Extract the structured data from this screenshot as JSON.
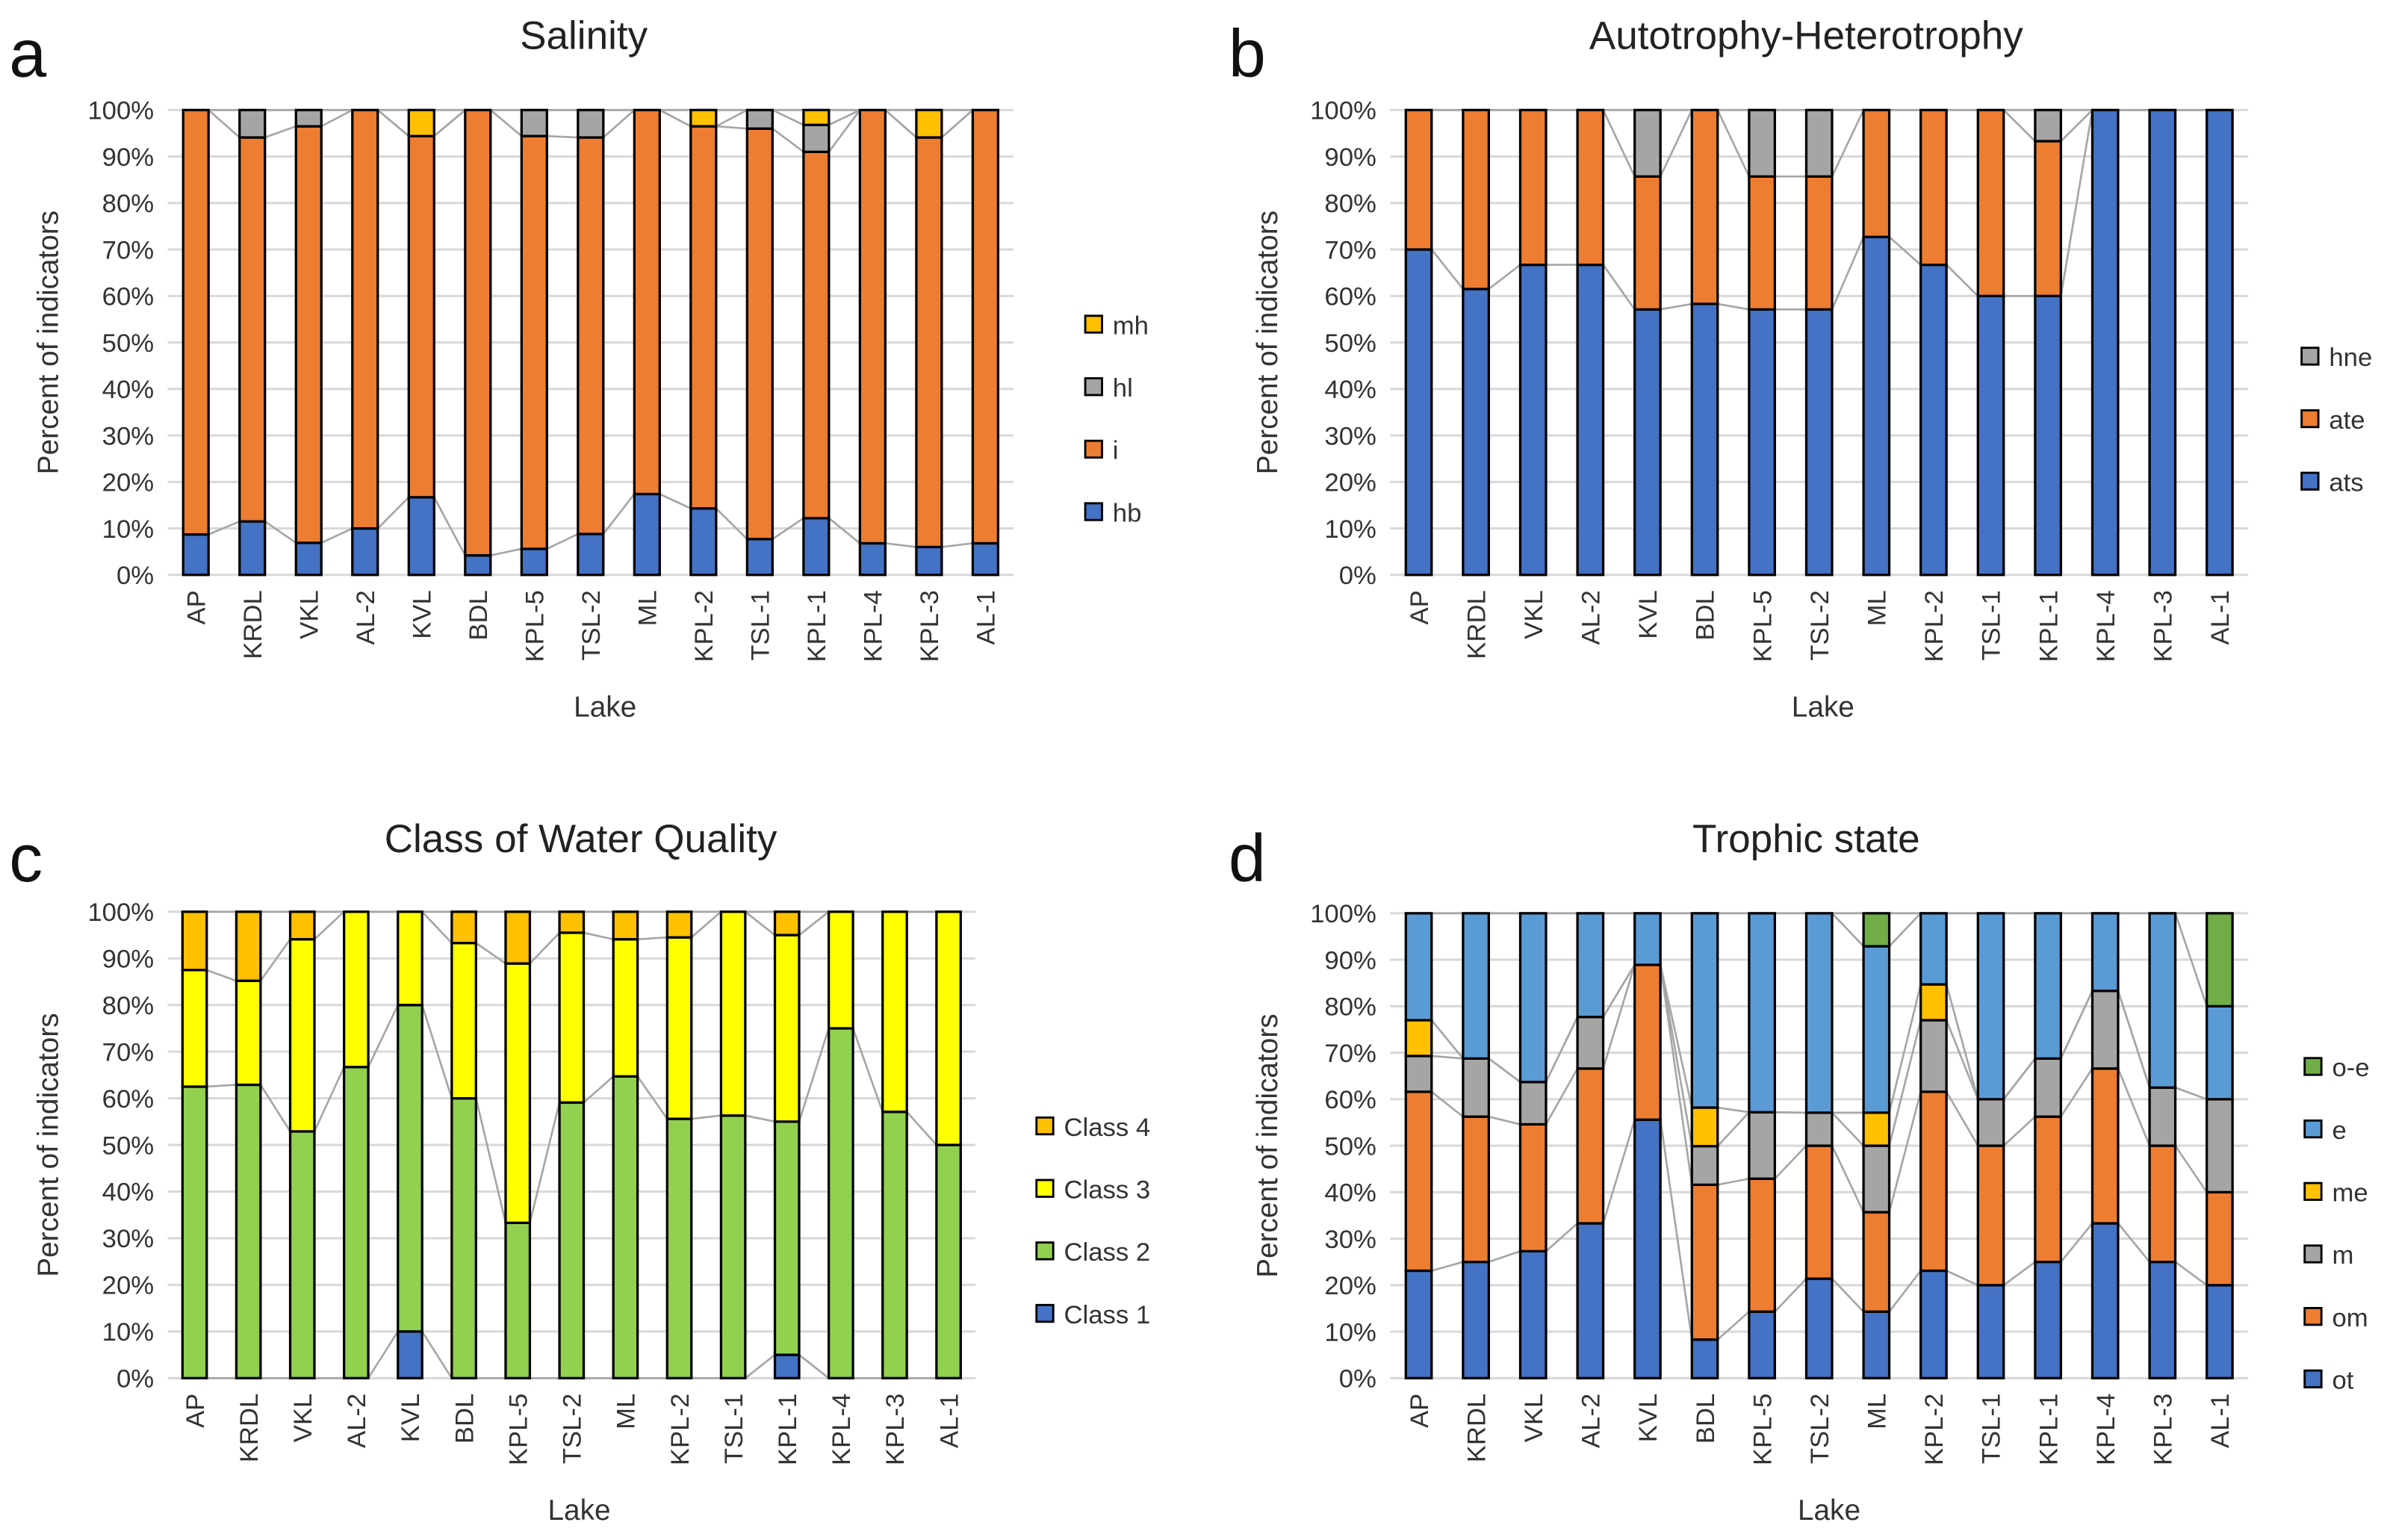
{
  "chart_data": [
    {
      "panel_letter": "a",
      "type": "bar",
      "stacked": "percent",
      "title": "Salinity",
      "xlabel": "Lake",
      "ylabel": "Percent of indicators",
      "ylim": [
        0,
        100
      ],
      "yticks": [
        "0%",
        "10%",
        "20%",
        "30%",
        "40%",
        "50%",
        "60%",
        "70%",
        "80%",
        "90%",
        "100%"
      ],
      "grid": true,
      "legend_position": "right",
      "series_lines": true,
      "categories": [
        "AP",
        "KRDL",
        "VKL",
        "AL-2",
        "KVL",
        "BDL",
        "KPL-5",
        "TSL-2",
        "ML",
        "KPL-2",
        "TSL-1",
        "KPL-1",
        "KPL-4",
        "KPL-3",
        "AL-1"
      ],
      "series": [
        {
          "name": "hb",
          "color": "#4472C4",
          "values": [
            8.7,
            11.5,
            6.9,
            10.0,
            16.7,
            4.2,
            5.6,
            8.8,
            17.4,
            14.3,
            7.7,
            12.2,
            6.8,
            6.0,
            6.8
          ]
        },
        {
          "name": "i",
          "color": "#ED7D31",
          "values": [
            91.3,
            82.6,
            89.6,
            90.0,
            77.7,
            95.8,
            88.8,
            85.3,
            82.6,
            82.2,
            88.3,
            78.8,
            93.2,
            88.1,
            93.2
          ]
        },
        {
          "name": "hl",
          "color": "#A5A5A5",
          "values": [
            0,
            5.9,
            3.5,
            0,
            0,
            0,
            5.6,
            5.9,
            0,
            0,
            4.0,
            5.8,
            0,
            0,
            0
          ]
        },
        {
          "name": "mh",
          "color": "#FFC000",
          "values": [
            0,
            0,
            0,
            0,
            5.6,
            0,
            0,
            0,
            0,
            3.5,
            0,
            3.2,
            0,
            5.9,
            0
          ]
        }
      ]
    },
    {
      "panel_letter": "b",
      "type": "bar",
      "stacked": "percent",
      "title": "Autotrophy-Heterotrophy",
      "xlabel": "Lake",
      "ylabel": "Percent of indicators",
      "ylim": [
        0,
        100
      ],
      "yticks": [
        "0%",
        "10%",
        "20%",
        "30%",
        "40%",
        "50%",
        "60%",
        "70%",
        "80%",
        "90%",
        "100%"
      ],
      "grid": true,
      "legend_position": "right",
      "series_lines": true,
      "categories": [
        "AP",
        "KRDL",
        "VKL",
        "AL-2",
        "KVL",
        "BDL",
        "KPL-5",
        "TSL-2",
        "ML",
        "KPL-2",
        "TSL-1",
        "KPL-1",
        "KPL-4",
        "KPL-3",
        "AL-1"
      ],
      "series": [
        {
          "name": "ats",
          "color": "#4472C4",
          "values": [
            70.0,
            61.5,
            66.7,
            66.7,
            57.1,
            58.3,
            57.1,
            57.1,
            72.7,
            66.7,
            60.0,
            60.0,
            100,
            100,
            100
          ]
        },
        {
          "name": "ate",
          "color": "#ED7D31",
          "values": [
            30.0,
            38.5,
            33.3,
            33.3,
            28.6,
            41.7,
            28.6,
            28.6,
            27.3,
            33.3,
            40.0,
            33.3,
            0,
            0,
            0
          ]
        },
        {
          "name": "hne",
          "color": "#A5A5A5",
          "values": [
            0,
            0,
            0,
            0,
            14.3,
            0,
            14.3,
            14.3,
            0,
            0,
            0,
            6.7,
            0,
            0,
            0
          ]
        }
      ]
    },
    {
      "panel_letter": "c",
      "type": "bar",
      "stacked": "percent",
      "title": "Class of Water Quality",
      "xlabel": "Lake",
      "ylabel": "Percent of indicators",
      "ylim": [
        0,
        100
      ],
      "yticks": [
        "0%",
        "10%",
        "20%",
        "30%",
        "40%",
        "50%",
        "60%",
        "70%",
        "80%",
        "90%",
        "100%"
      ],
      "grid": true,
      "legend_position": "right",
      "series_lines": true,
      "categories": [
        "AP",
        "KRDL",
        "VKL",
        "AL-2",
        "KVL",
        "BDL",
        "KPL-5",
        "TSL-2",
        "ML",
        "KPL-2",
        "TSL-1",
        "KPL-1",
        "KPL-4",
        "KPL-3",
        "AL-1"
      ],
      "series": [
        {
          "name": "Class 1",
          "color": "#4472C4",
          "values": [
            0,
            0,
            0,
            0,
            10,
            0,
            0,
            0,
            0,
            0,
            0,
            5,
            0,
            0,
            0
          ]
        },
        {
          "name": "Class 2",
          "color": "#92D050",
          "values": [
            62.5,
            62.9,
            52.9,
            66.7,
            70,
            60,
            33.3,
            59.1,
            64.7,
            55.6,
            56.3,
            50,
            75,
            57.1,
            50
          ]
        },
        {
          "name": "Class 3",
          "color": "#FFFF00",
          "values": [
            25,
            22.3,
            41.2,
            33.3,
            20,
            33.3,
            55.6,
            36.4,
            29.4,
            38.9,
            43.7,
            40,
            25,
            42.9,
            50
          ]
        },
        {
          "name": "Class 4",
          "color": "#FFC000",
          "values": [
            12.5,
            14.8,
            5.9,
            0,
            0,
            6.7,
            11.1,
            4.5,
            5.9,
            5.5,
            0,
            5,
            0,
            0,
            0
          ]
        }
      ]
    },
    {
      "panel_letter": "d",
      "type": "bar",
      "stacked": "percent",
      "title": "Trophic state",
      "xlabel": "Lake",
      "ylabel": "Percent of indicators",
      "ylim": [
        0,
        100
      ],
      "yticks": [
        "0%",
        "10%",
        "20%",
        "30%",
        "40%",
        "50%",
        "60%",
        "70%",
        "80%",
        "90%",
        "100%"
      ],
      "grid": true,
      "legend_position": "right",
      "series_lines": true,
      "categories": [
        "AP",
        "KRDL",
        "VKL",
        "AL-2",
        "KVL",
        "BDL",
        "KPL-5",
        "TSL-2",
        "ML",
        "KPL-2",
        "TSL-1",
        "KPL-1",
        "KPL-4",
        "KPL-3",
        "AL-1"
      ],
      "series": [
        {
          "name": "ot",
          "color": "#4472C4",
          "values": [
            23.1,
            25,
            27.3,
            33.3,
            55.6,
            8.3,
            14.3,
            21.4,
            14.3,
            23.1,
            20,
            25,
            33.3,
            25,
            20
          ]
        },
        {
          "name": "om",
          "color": "#ED7D31",
          "values": [
            38.5,
            31.25,
            27.3,
            33.3,
            33.3,
            33.3,
            28.6,
            28.6,
            21.4,
            38.5,
            30,
            31.25,
            33.3,
            25,
            20
          ]
        },
        {
          "name": "m",
          "color": "#A5A5A5",
          "values": [
            7.7,
            12.5,
            9.1,
            11.1,
            0,
            8.3,
            14.3,
            7.1,
            14.3,
            15.4,
            10,
            12.5,
            16.7,
            12.5,
            20
          ]
        },
        {
          "name": "me",
          "color": "#FFC000",
          "values": [
            7.7,
            0,
            0,
            0,
            0,
            8.3,
            0,
            0,
            7.1,
            7.7,
            0,
            0,
            0,
            0,
            0
          ]
        },
        {
          "name": "e",
          "color": "#5B9BD5",
          "values": [
            23.0,
            31.25,
            36.3,
            22.3,
            11.1,
            41.8,
            42.8,
            42.9,
            35.8,
            15.3,
            40,
            31.25,
            16.7,
            37.5,
            20
          ]
        },
        {
          "name": "o-e",
          "color": "#70AD47",
          "values": [
            0,
            0,
            0,
            0,
            0,
            0,
            0,
            0,
            7.1,
            0,
            0,
            0,
            0,
            0,
            20
          ]
        }
      ]
    }
  ]
}
